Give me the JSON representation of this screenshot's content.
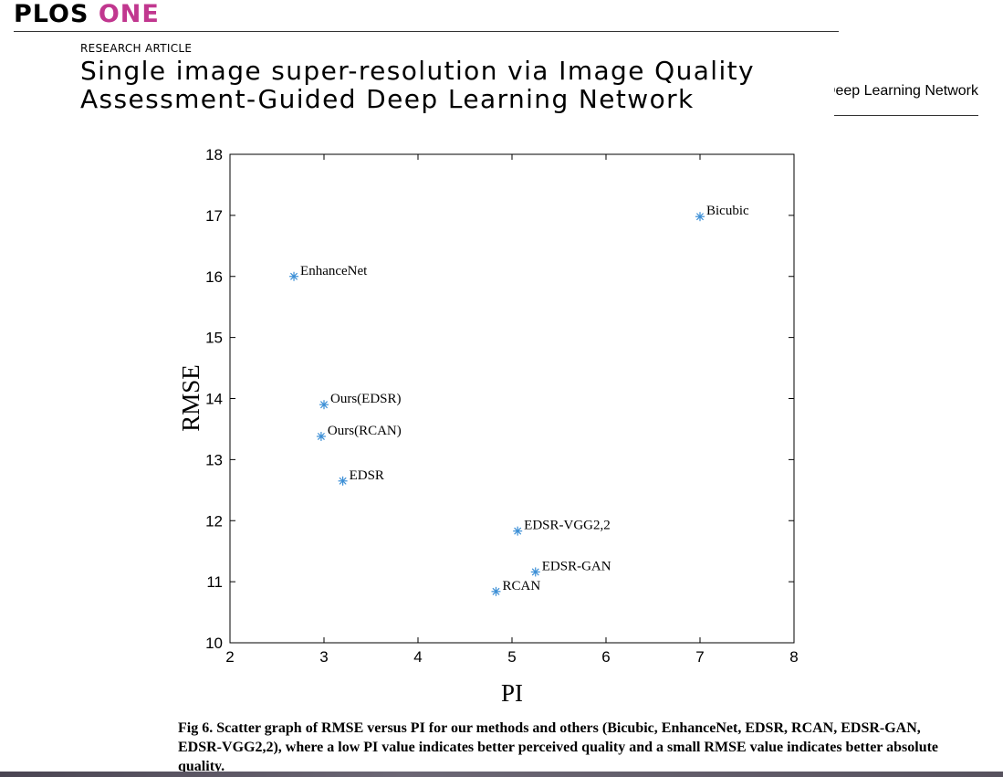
{
  "header": {
    "journal_name_part1": "PLOS",
    "journal_name_part2": "ONE",
    "journal_color": "#c1378f",
    "article_type": "RESEARCH ARTICLE",
    "article_title": "Single image super-resolution via Image Quality Assessment-Guided Deep Learning Network",
    "running_head": "Single image super-resolution via Image Quality Assessment-Guided Deep Learning Network"
  },
  "chart_data": {
    "type": "scatter",
    "xlabel": "PI",
    "ylabel": "RMSE",
    "xlim": [
      2,
      8
    ],
    "ylim": [
      10,
      18
    ],
    "xticks": [
      2,
      3,
      4,
      5,
      6,
      7,
      8
    ],
    "yticks": [
      10,
      11,
      12,
      13,
      14,
      15,
      16,
      17,
      18
    ],
    "grid": false,
    "marker": "asterisk",
    "marker_color": "#3c8fd6",
    "points": [
      {
        "label": "Bicubic",
        "x": 7.0,
        "y": 16.98
      },
      {
        "label": "EnhanceNet",
        "x": 2.68,
        "y": 16.0
      },
      {
        "label": "Ours(EDSR)",
        "x": 3.0,
        "y": 13.9
      },
      {
        "label": "Ours(RCAN)",
        "x": 2.97,
        "y": 13.38
      },
      {
        "label": "EDSR",
        "x": 3.2,
        "y": 12.65
      },
      {
        "label": "EDSR-VGG2,2",
        "x": 5.06,
        "y": 11.83
      },
      {
        "label": "EDSR-GAN",
        "x": 5.25,
        "y": 11.16
      },
      {
        "label": "RCAN",
        "x": 4.83,
        "y": 10.84
      }
    ]
  },
  "figure": {
    "caption": "Fig 6. Scatter graph of RMSE versus PI for our methods and others (Bicubic, EnhanceNet, EDSR, RCAN, EDSR-GAN, EDSR-VGG2,2), where a low PI value indicates better perceived quality and a small RMSE value indicates better absolute quality."
  }
}
